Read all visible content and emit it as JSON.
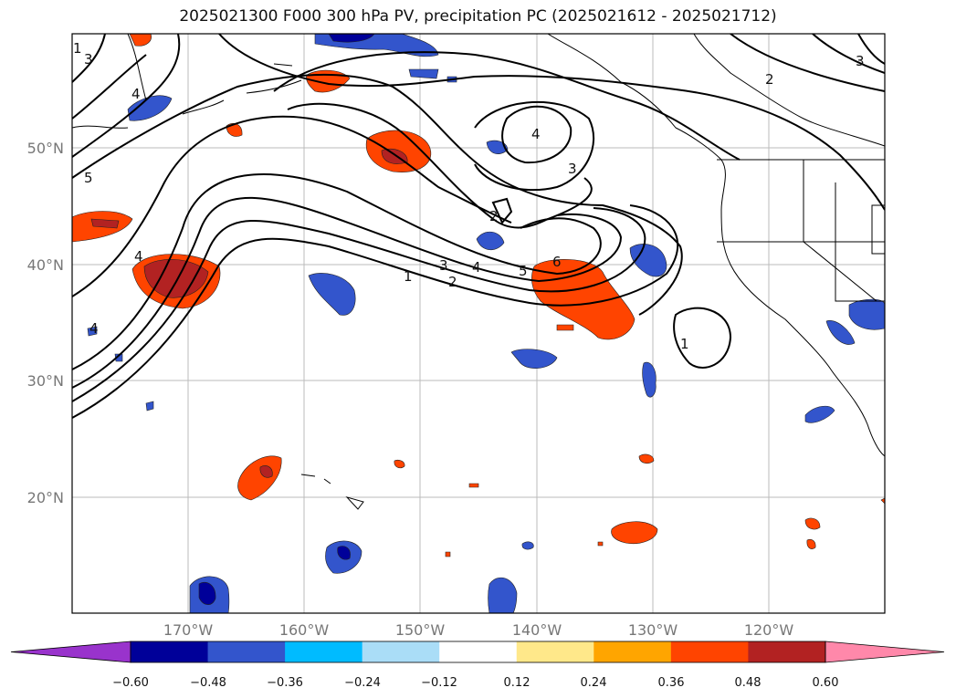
{
  "title": "2025021300 F000 300 hPa PV, precipitation PC (2025021612 - 2025021712)",
  "lat_labels": [
    "50°N",
    "40°N",
    "30°N",
    "20°N"
  ],
  "lon_labels": [
    "170°W",
    "160°W",
    "150°W",
    "140°W",
    "130°W",
    "120°W"
  ],
  "colorbar": {
    "ticks": [
      "−0.60",
      "−0.48",
      "−0.36",
      "−0.24",
      "−0.12",
      "0.12",
      "0.24",
      "0.36",
      "0.48",
      "0.60"
    ],
    "colors": [
      "#9933cc",
      "#000099",
      "#3355cc",
      "#00bbff",
      "#aaddf7",
      "#ffffff",
      "#ffe88a",
      "#ffa500",
      "#ff4400",
      "#b22222",
      "#ff88aa"
    ]
  },
  "contour_labels": [
    "1",
    "2",
    "3",
    "4",
    "5",
    "6",
    "4",
    "3",
    "2",
    "4",
    "5",
    "4",
    "4",
    "3",
    "2",
    "3",
    "1",
    "1"
  ]
}
